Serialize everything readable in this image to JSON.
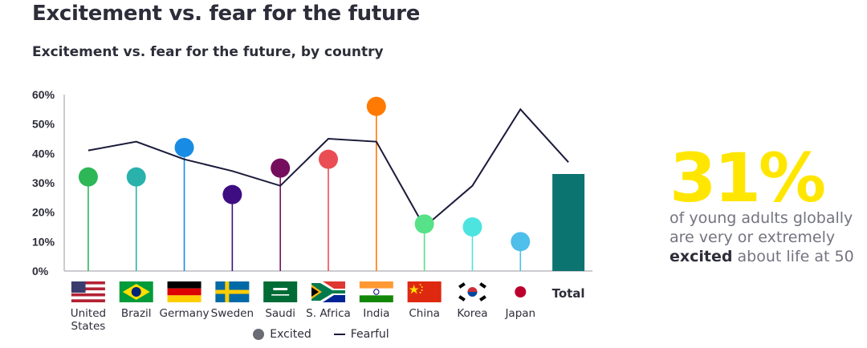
{
  "title": "Excitement vs. fear for the future",
  "subtitle": "Excitement vs. fear for the future, by country",
  "chart_data": {
    "type": "lollipop-line",
    "yticks": [
      "60%",
      "50%",
      "40%",
      "30%",
      "20%",
      "10%",
      "0%"
    ],
    "ylim": [
      0,
      60
    ],
    "categories": [
      {
        "label": [
          "United",
          "States"
        ],
        "flag": "us-flag-icon"
      },
      {
        "label": [
          "Brazil"
        ],
        "flag": "brazil-flag-icon"
      },
      {
        "label": [
          "Germany"
        ],
        "flag": "germany-flag-icon"
      },
      {
        "label": [
          "Sweden"
        ],
        "flag": "sweden-flag-icon"
      },
      {
        "label": [
          "Saudi"
        ],
        "flag": "saudi-flag-icon"
      },
      {
        "label": [
          "S. Africa"
        ],
        "flag": "south-africa-flag-icon"
      },
      {
        "label": [
          "India"
        ],
        "flag": "india-flag-icon"
      },
      {
        "label": [
          "China"
        ],
        "flag": "china-flag-icon"
      },
      {
        "label": [
          "Korea"
        ],
        "flag": "korea-flag-icon"
      },
      {
        "label": [
          "Japan"
        ],
        "flag": "japan-flag-icon"
      }
    ],
    "excited": [
      32,
      32,
      42,
      26,
      35,
      38,
      56,
      16,
      15,
      10
    ],
    "excited_colors": [
      "#2db757",
      "#2ab1ac",
      "#188ce5",
      "#3e0d82",
      "#750e5c",
      "#ea4e54",
      "#ff7a00",
      "#57e188",
      "#4de4e0",
      "#4ebeeb"
    ],
    "fearful": [
      41,
      44,
      38,
      34,
      29,
      45,
      44,
      15,
      29,
      55,
      37
    ],
    "total": {
      "label": "Total",
      "excited": 33,
      "color": "#0b7370"
    },
    "legend": [
      {
        "label": "Excited",
        "kind": "dot",
        "color": "#6b6b75"
      },
      {
        "label": "Fearful",
        "kind": "line",
        "color": "#1a1a3a"
      }
    ]
  },
  "callout": {
    "number": "31%",
    "text_before": "of young adults globally are very or extremely ",
    "text_bold": "excited",
    "text_after": " about life at 50"
  }
}
